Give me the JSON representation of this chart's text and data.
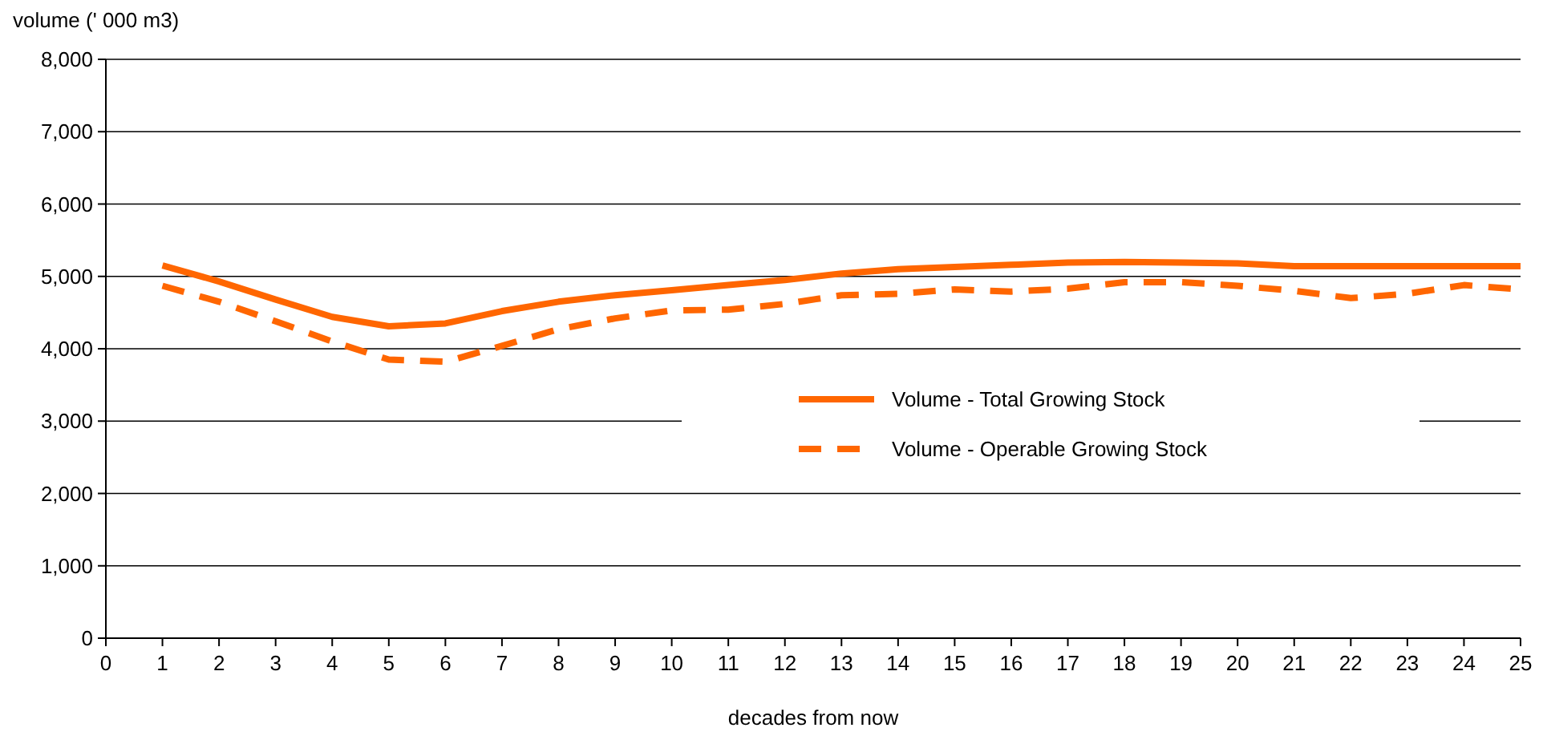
{
  "chart_data": {
    "type": "line",
    "ylabel": "volume (' 000 m3)",
    "xlabel": "decades from now",
    "x": [
      1,
      2,
      3,
      4,
      5,
      6,
      7,
      8,
      9,
      10,
      11,
      12,
      13,
      14,
      15,
      16,
      17,
      18,
      19,
      20,
      21,
      22,
      23,
      24,
      25
    ],
    "xlim": [
      0,
      25
    ],
    "xticks": [
      0,
      1,
      2,
      3,
      4,
      5,
      6,
      7,
      8,
      9,
      10,
      11,
      12,
      13,
      14,
      15,
      16,
      17,
      18,
      19,
      20,
      21,
      22,
      23,
      24,
      25
    ],
    "ylim": [
      0,
      8000
    ],
    "yticks": [
      {
        "value": 0,
        "label": "0"
      },
      {
        "value": 1000,
        "label": "1,000"
      },
      {
        "value": 2000,
        "label": "2,000"
      },
      {
        "value": 3000,
        "label": "3,000"
      },
      {
        "value": 4000,
        "label": "4,000"
      },
      {
        "value": 5000,
        "label": "5,000"
      },
      {
        "value": 6000,
        "label": "6,000"
      },
      {
        "value": 7000,
        "label": "7,000"
      },
      {
        "value": 8000,
        "label": "8,000"
      }
    ],
    "grid": "y",
    "legend": "right",
    "series": [
      {
        "name": "Volume - Total Growing Stock",
        "color": "#ff6600",
        "line_style": "solid",
        "values": [
          5150,
          4930,
          4680,
          4440,
          4310,
          4350,
          4520,
          4650,
          4740,
          4810,
          4880,
          4950,
          5040,
          5100,
          5130,
          5160,
          5190,
          5200,
          5190,
          5180,
          5140,
          5140,
          5140,
          5140,
          5140
        ]
      },
      {
        "name": "Volume - Operable Growing Stock",
        "color": "#ff6600",
        "line_style": "dashed",
        "values": [
          4870,
          4650,
          4380,
          4100,
          3850,
          3820,
          4040,
          4270,
          4420,
          4530,
          4540,
          4620,
          4740,
          4760,
          4820,
          4790,
          4830,
          4920,
          4920,
          4870,
          4800,
          4700,
          4760,
          4880,
          4820
        ]
      }
    ]
  }
}
